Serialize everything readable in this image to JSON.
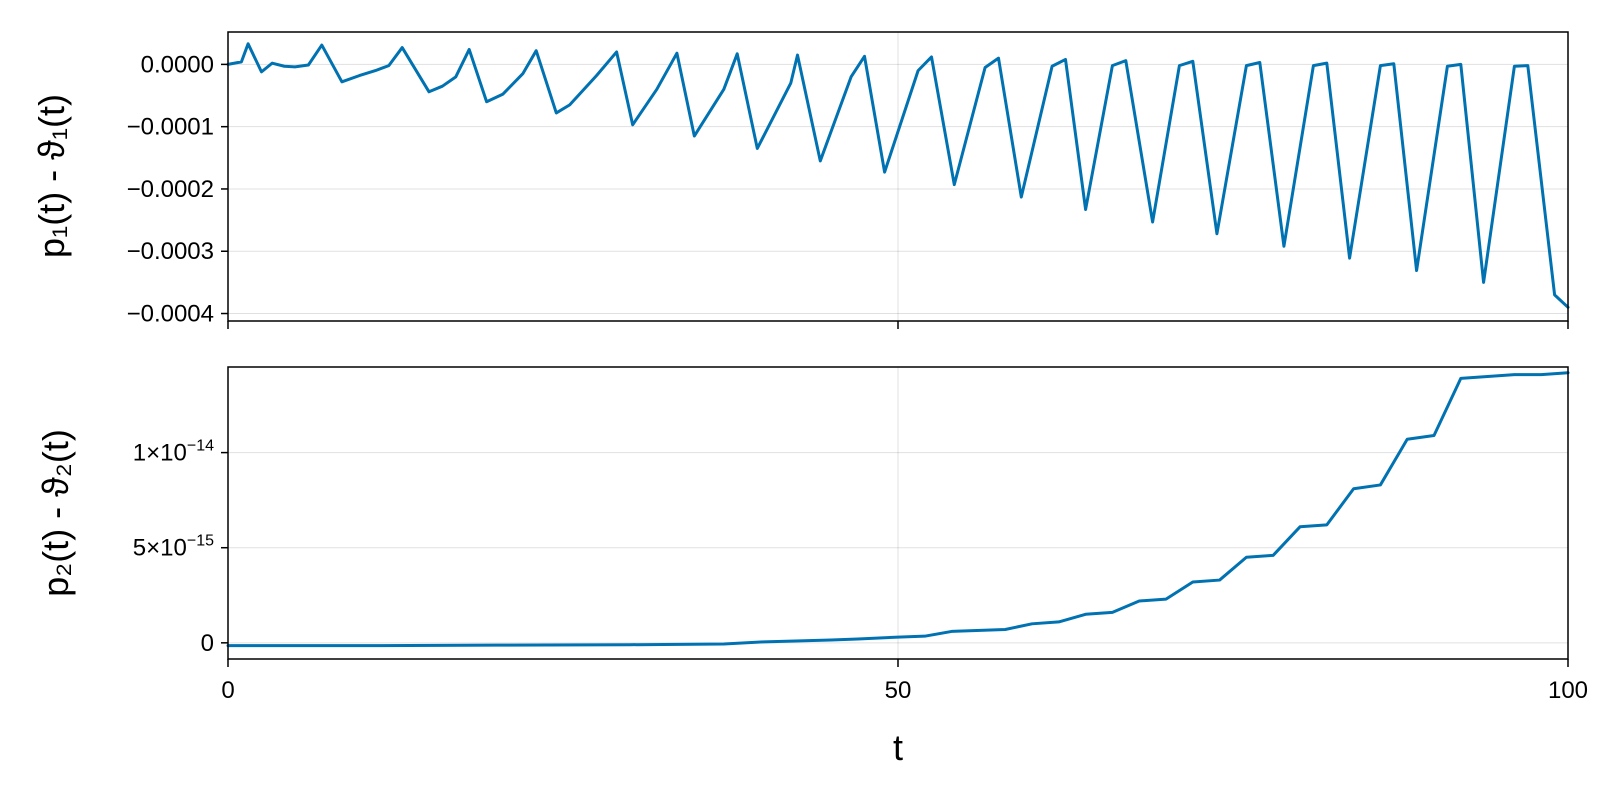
{
  "colors": {
    "series": "#0072b2",
    "background": "#ffffff"
  },
  "chart_data": [
    {
      "type": "line",
      "title": "",
      "xlabel": "",
      "ylabel": "p₁(t) - ϑ₁(t)",
      "xlim": [
        0,
        100
      ],
      "ylim": [
        -0.000412,
        5.2e-05
      ],
      "grid": true,
      "xticks": [
        0,
        50,
        100
      ],
      "yticks": [
        0.0,
        -0.0001,
        -0.0002,
        -0.0003,
        -0.0004
      ],
      "ytick_labels": [
        "0.0000",
        "−0.0001",
        "−0.0002",
        "−0.0003",
        "−0.0004"
      ],
      "series": [
        {
          "x": [
            0,
            1.0,
            1.5,
            2.5,
            3.3,
            4.2,
            5.0,
            6.0,
            7.0,
            8.5,
            9.8,
            11.0,
            12.0,
            13.0,
            15.0,
            16.0,
            17.0,
            18.0,
            19.3,
            20.5,
            22.0,
            23.0,
            24.5,
            25.5,
            27.5,
            29.0,
            30.2,
            32.0,
            33.5,
            34.8,
            37.0,
            38.0,
            39.5,
            42.0,
            42.5,
            44.2,
            46.5,
            47.5,
            49.0,
            51.5,
            52.5,
            54.2,
            56.5,
            57.5,
            59.2,
            61.5,
            62.5,
            64.0,
            66.0,
            67.0,
            69.0,
            71.0,
            72.0,
            73.8,
            76.0,
            77.0,
            78.8,
            81.0,
            82.0,
            83.7,
            86.0,
            87.0,
            88.7,
            91.0,
            92.0,
            93.7,
            96.0,
            97.0,
            99.0,
            100
          ],
          "y": [
            0.0,
            4e-06,
            3.3e-05,
            -1.2e-05,
            2e-06,
            -3e-06,
            -4e-06,
            -1e-06,
            3.1e-05,
            -2.8e-05,
            -1.8e-05,
            -1e-05,
            -2e-06,
            2.7e-05,
            -4.4e-05,
            -3.5e-05,
            -2e-05,
            2.4e-05,
            -6e-05,
            -4.8e-05,
            -1.5e-05,
            2.2e-05,
            -7.8e-05,
            -6.5e-05,
            -1.8e-05,
            2e-05,
            -9.7e-05,
            -4e-05,
            1.8e-05,
            -0.000115,
            -4e-05,
            1.7e-05,
            -0.000135,
            -3e-05,
            1.5e-05,
            -0.000155,
            -2e-05,
            1.3e-05,
            -0.000173,
            -1e-05,
            1.2e-05,
            -0.000193,
            -5e-06,
            1e-05,
            -0.000213,
            -3e-06,
            8e-06,
            -0.000233,
            -2e-06,
            6e-06,
            -0.000253,
            -2e-06,
            5e-06,
            -0.000272,
            -2e-06,
            3e-06,
            -0.000292,
            -2e-06,
            2e-06,
            -0.000311,
            -2e-06,
            1e-06,
            -0.000331,
            -3e-06,
            0.0,
            -0.00035,
            -3e-06,
            -2e-06,
            -0.00037,
            -0.00039
          ]
        }
      ]
    },
    {
      "type": "line",
      "title": "",
      "xlabel": "t",
      "ylabel": "p₂(t) - ϑ₂(t)",
      "xlim": [
        0,
        100
      ],
      "ylim": [
        -8.5e-16,
        1.45e-14
      ],
      "grid": true,
      "xticks": [
        0,
        50,
        100
      ],
      "xtick_labels": [
        "0",
        "50",
        "100"
      ],
      "yticks": [
        0,
        5e-15,
        1e-14
      ],
      "ytick_labels": [
        {
          "mantissa": "0",
          "exponent": ""
        },
        {
          "mantissa": "5×10",
          "exponent": "−15"
        },
        {
          "mantissa": "1×10",
          "exponent": "−14"
        }
      ],
      "series": [
        {
          "x": [
            0,
            10,
            20,
            30,
            37,
            40,
            45,
            47,
            50,
            52,
            54,
            58,
            60,
            62,
            64,
            66,
            68,
            70,
            72,
            74,
            76,
            78,
            80,
            82,
            84,
            86,
            88,
            90,
            92,
            94,
            96,
            98,
            100
          ],
          "y": [
            -1.5e-16,
            -1.5e-16,
            -1.2e-16,
            -1e-16,
            -6e-17,
            5e-17,
            1.5e-16,
            2e-16,
            3e-16,
            3.5e-16,
            6e-16,
            7e-16,
            1e-15,
            1.1e-15,
            1.5e-15,
            1.6e-15,
            2.2e-15,
            2.3e-15,
            3.2e-15,
            3.3e-15,
            4.5e-15,
            4.6e-15,
            6.1e-15,
            6.2e-15,
            8.1e-15,
            8.3e-15,
            1.07e-14,
            1.09e-14,
            1.39e-14,
            1.4e-14,
            1.41e-14,
            1.41e-14,
            1.42e-14
          ]
        }
      ]
    }
  ]
}
